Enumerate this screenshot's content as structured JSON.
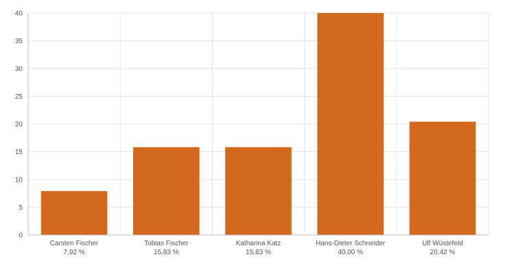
{
  "colors": {
    "bar": "#d2691e",
    "grid": "#e6e6e6",
    "axis": "#bdbdbd",
    "text": "#555555"
  },
  "chart_data": {
    "type": "bar",
    "categories": [
      "Carsten Fischer",
      "Tobias Fischer",
      "Katharina Katz",
      "Hans-Dieter Schneider",
      "Ulf Wüstefeld"
    ],
    "value_labels": [
      "7,92 %",
      "15,83 %",
      "15,83 %",
      "40,00 %",
      "20,42 %"
    ],
    "values": [
      7.92,
      15.83,
      15.83,
      40.0,
      20.42
    ],
    "ylim": [
      0,
      40
    ],
    "yticks": [
      0,
      5,
      10,
      15,
      20,
      25,
      30,
      35,
      40
    ],
    "grid": true,
    "xlabel": "",
    "ylabel": ""
  }
}
